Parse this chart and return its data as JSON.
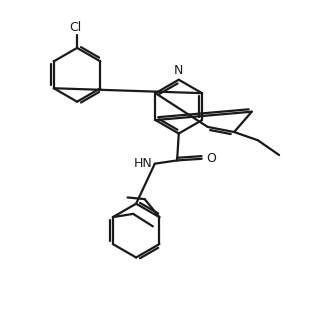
{
  "bg_color": "#ffffff",
  "line_color": "#1a1a1a",
  "bond_lw": 1.6,
  "figsize": [
    3.28,
    3.3
  ],
  "dpi": 100,
  "xlim": [
    0,
    10
  ],
  "ylim": [
    0,
    10
  ]
}
